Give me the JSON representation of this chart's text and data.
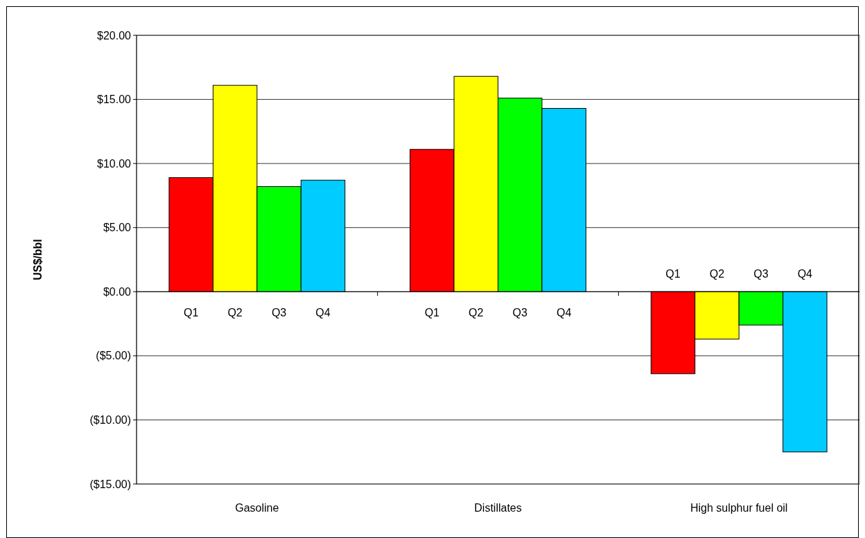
{
  "chart_data": {
    "type": "bar",
    "ylabel": "US$/bbl",
    "categories": [
      "Gasoline",
      "Distillates",
      "High sulphur fuel oil"
    ],
    "series": [
      {
        "name": "Q1",
        "color": "#ff0000",
        "values": [
          8.9,
          11.1,
          -6.4
        ]
      },
      {
        "name": "Q2",
        "color": "#ffff00",
        "values": [
          16.1,
          16.8,
          -3.7
        ]
      },
      {
        "name": "Q3",
        "color": "#00ff00",
        "values": [
          8.2,
          15.1,
          -2.6
        ]
      },
      {
        "name": "Q4",
        "color": "#00ccff",
        "values": [
          8.7,
          14.3,
          -12.5
        ]
      }
    ],
    "ylim": [
      -15,
      20
    ],
    "yticks": [
      {
        "value": -15,
        "label": "($15.00)"
      },
      {
        "value": -10,
        "label": "($10.00)"
      },
      {
        "value": -5,
        "label": "($5.00)"
      },
      {
        "value": 0,
        "label": "$0.00"
      },
      {
        "value": 5,
        "label": "$5.00"
      },
      {
        "value": 10,
        "label": "$10.00"
      },
      {
        "value": 15,
        "label": "$15.00"
      },
      {
        "value": 20,
        "label": "$20.00"
      }
    ],
    "grid": "y"
  }
}
